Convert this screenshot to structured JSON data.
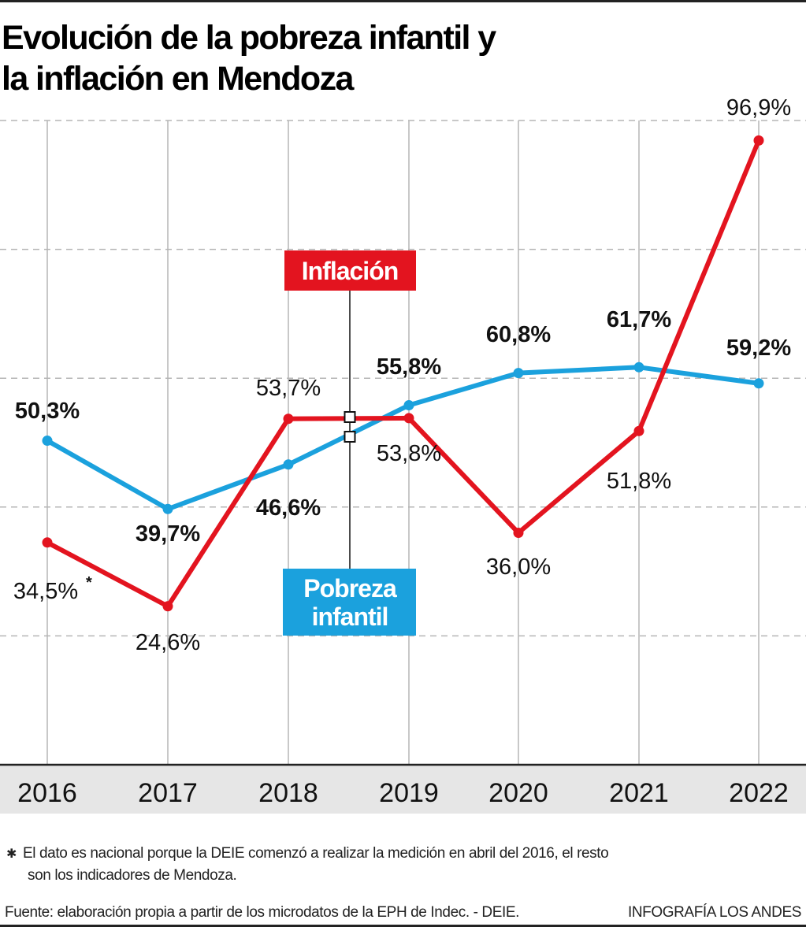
{
  "title_line1": "Evolución de la pobreza infantil y",
  "title_line2": "la inflación en Mendoza",
  "chart_data": {
    "type": "line",
    "title": "Evolución de la pobreza infantil y la inflación en Mendoza",
    "categories": [
      "2016",
      "2017",
      "2018",
      "2019",
      "2020",
      "2021",
      "2022"
    ],
    "ylim": [
      0,
      100
    ],
    "yticks": [
      20,
      40,
      60,
      80,
      100
    ],
    "y_tick_labels_shown": false,
    "grid": "horizontal dashed, vertical solid",
    "legend": "inline labels near 2018-2019",
    "series": [
      {
        "name": "Inflación",
        "color": "#e3141f",
        "values": [
          34.5,
          24.6,
          53.7,
          53.8,
          36.0,
          51.8,
          96.9
        ],
        "labels": [
          "34,5%",
          "24,6%",
          "53,7%",
          "53,8%",
          "36,0%",
          "51,8%",
          "96,9%"
        ]
      },
      {
        "name": "Pobreza infantil",
        "color": "#1ba1dd",
        "values": [
          50.3,
          39.7,
          46.6,
          55.8,
          60.8,
          61.7,
          59.2
        ],
        "labels": [
          "50,3%",
          "39,7%",
          "46,6%",
          "55,8%",
          "60,8%",
          "61,7%",
          "59,2%"
        ]
      }
    ],
    "legend_inflacion": "Inflación",
    "legend_pobreza_1": "Pobreza",
    "legend_pobreza_2": "infantil",
    "annotation_marker": "*"
  },
  "colors": {
    "inflation": "#e3141f",
    "poverty": "#1ba1dd",
    "axis_band": "#e6e6e6",
    "grid": "#b5b5b5"
  },
  "footnote_marker": "✱",
  "footnote_line1": "El dato es nacional porque la DEIE comenzó a realizar la medición en abril del 2016, el resto",
  "footnote_line2": "son los indicadores de Mendoza.",
  "source": "Fuente: elaboración propia a partir de los microdatos de la EPH de Indec. - DEIE.",
  "credit": "INFOGRAFÍA LOS ANDES"
}
